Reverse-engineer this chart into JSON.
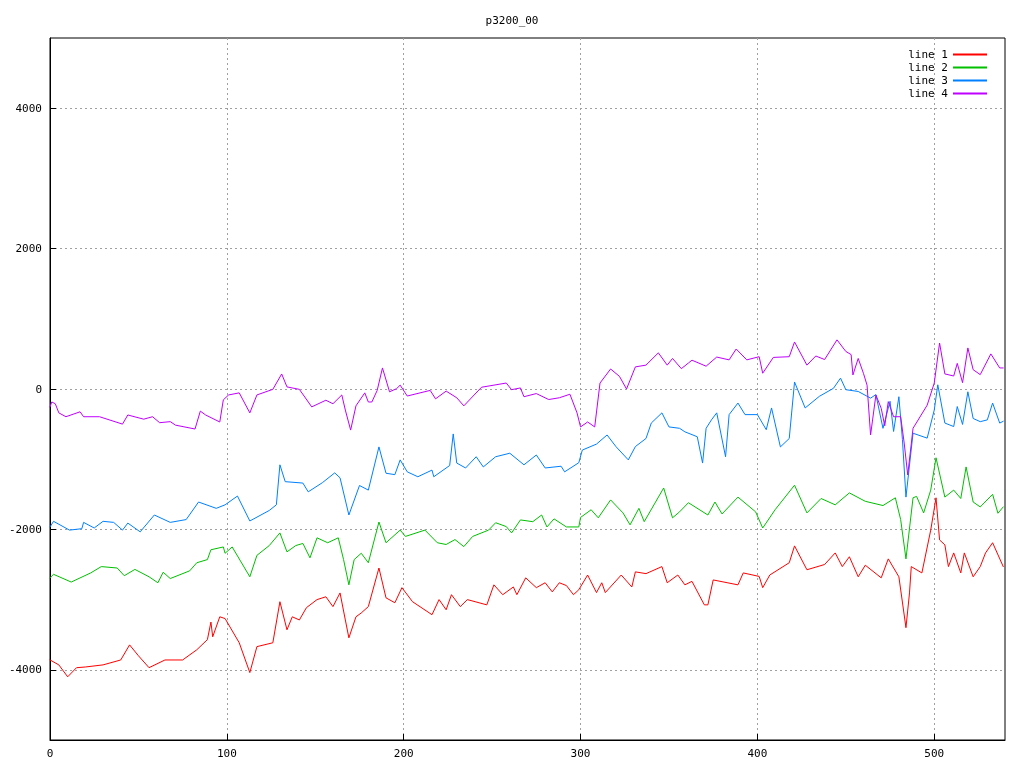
{
  "chart_data": {
    "type": "line",
    "title": "p3200_00",
    "xlim": [
      0,
      540
    ],
    "xticks": [
      0,
      100,
      200,
      300,
      400,
      500
    ],
    "ylim": [
      -5000,
      5000
    ],
    "yticks": [
      -4000,
      -2000,
      0,
      2000,
      4000
    ],
    "grid": true,
    "legend": "top right",
    "marker": "none",
    "line_style": "solid",
    "series": [
      {
        "name": "line 1",
        "color": "#ff0000",
        "x": [
          0,
          5,
          10,
          15,
          20,
          30,
          40,
          45,
          50,
          56,
          65,
          75,
          83,
          89,
          91,
          92,
          96,
          99,
          107,
          113,
          117,
          126,
          130,
          134,
          137,
          141,
          145,
          151,
          156,
          160,
          164,
          167,
          169,
          173,
          176,
          180,
          186,
          190,
          195,
          199,
          205,
          216,
          220,
          224,
          227,
          232,
          236,
          247,
          251,
          256,
          262,
          264,
          269,
          275,
          280,
          284,
          288,
          292,
          296,
          299,
          304,
          309,
          312,
          314,
          323,
          329,
          331,
          337,
          346,
          349,
          355,
          359,
          363,
          370,
          372,
          375,
          389,
          392,
          401,
          403,
          407,
          418,
          421,
          428,
          438,
          444,
          448,
          452,
          457,
          461,
          470,
          474,
          480,
          484,
          486,
          487,
          493,
          498,
          501,
          503,
          506,
          508,
          511,
          515,
          517,
          522,
          526,
          529,
          533,
          539
        ],
        "values": [
          -3860,
          -3930,
          -4100,
          -3970,
          -3960,
          -3930,
          -3860,
          -3645,
          -3800,
          -3970,
          -3860,
          -3860,
          -3715,
          -3570,
          -3320,
          -3530,
          -3245,
          -3270,
          -3615,
          -4040,
          -3670,
          -3615,
          -3030,
          -3430,
          -3245,
          -3290,
          -3115,
          -3000,
          -2960,
          -3100,
          -2905,
          -3290,
          -3545,
          -3245,
          -3190,
          -3100,
          -2550,
          -2975,
          -3045,
          -2830,
          -3030,
          -3215,
          -3000,
          -3145,
          -2930,
          -3100,
          -3000,
          -3075,
          -2790,
          -2930,
          -2820,
          -2930,
          -2690,
          -2830,
          -2760,
          -2890,
          -2760,
          -2800,
          -2930,
          -2860,
          -2650,
          -2900,
          -2760,
          -2900,
          -2650,
          -2820,
          -2605,
          -2630,
          -2530,
          -2760,
          -2650,
          -2790,
          -2740,
          -3075,
          -3075,
          -2720,
          -2790,
          -2620,
          -2670,
          -2830,
          -2650,
          -2475,
          -2235,
          -2575,
          -2500,
          -2335,
          -2530,
          -2390,
          -2675,
          -2510,
          -2690,
          -2420,
          -2675,
          -3400,
          -2905,
          -2530,
          -2620,
          -2010,
          -1550,
          -2150,
          -2220,
          -2530,
          -2335,
          -2620,
          -2335,
          -2675,
          -2530,
          -2335,
          -2190,
          -2530
        ]
      },
      {
        "name": "line 2",
        "color": "#00c000",
        "x": [
          0,
          2,
          12,
          23,
          29,
          38,
          42,
          48,
          56,
          61,
          64,
          68,
          79,
          83,
          89,
          91,
          98,
          99,
          103,
          113,
          117,
          124,
          130,
          134,
          139,
          143,
          147,
          151,
          157,
          163,
          166,
          169,
          172,
          176,
          180,
          186,
          190,
          198,
          201,
          212,
          219,
          224,
          229,
          234,
          239,
          248,
          252,
          258,
          261,
          266,
          273,
          278,
          281,
          285,
          292,
          299,
          300,
          306,
          310,
          317,
          324,
          328,
          333,
          336,
          347,
          352,
          356,
          361,
          372,
          376,
          380,
          389,
          399,
          403,
          410,
          421,
          428,
          436,
          444,
          452,
          461,
          471,
          478,
          481,
          484,
          488,
          490,
          494,
          498,
          501,
          506,
          511,
          515,
          518,
          522,
          526,
          533,
          536,
          539
        ],
        "values": [
          -2690,
          -2640,
          -2750,
          -2620,
          -2530,
          -2550,
          -2660,
          -2570,
          -2675,
          -2760,
          -2610,
          -2700,
          -2590,
          -2475,
          -2430,
          -2290,
          -2250,
          -2340,
          -2250,
          -2675,
          -2370,
          -2230,
          -2050,
          -2320,
          -2230,
          -2200,
          -2405,
          -2120,
          -2190,
          -2120,
          -2430,
          -2790,
          -2430,
          -2340,
          -2475,
          -1895,
          -2190,
          -2010,
          -2100,
          -2010,
          -2190,
          -2215,
          -2145,
          -2245,
          -2100,
          -2010,
          -1905,
          -1960,
          -2050,
          -1865,
          -1890,
          -1795,
          -1965,
          -1850,
          -1965,
          -1965,
          -1830,
          -1720,
          -1835,
          -1580,
          -1765,
          -1935,
          -1700,
          -1890,
          -1410,
          -1835,
          -1750,
          -1620,
          -1795,
          -1610,
          -1780,
          -1540,
          -1750,
          -1980,
          -1720,
          -1370,
          -1765,
          -1560,
          -1650,
          -1480,
          -1600,
          -1660,
          -1550,
          -1860,
          -2420,
          -1550,
          -1530,
          -1765,
          -1440,
          -980,
          -1540,
          -1440,
          -1560,
          -1110,
          -1610,
          -1680,
          -1500,
          -1770,
          -1680
        ]
      },
      {
        "name": "line 3",
        "color": "#0080ff",
        "x": [
          0,
          2,
          11,
          18,
          19,
          25,
          30,
          36,
          41,
          44,
          51,
          59,
          68,
          77,
          84,
          94,
          99,
          106,
          113,
          124,
          128,
          130,
          133,
          143,
          146,
          154,
          161,
          164,
          169,
          175,
          180,
          186,
          190,
          195,
          198,
          202,
          208,
          216,
          217,
          226,
          228,
          230,
          235,
          241,
          245,
          252,
          260,
          268,
          275,
          280,
          289,
          291,
          299,
          301,
          309,
          315,
          320,
          327,
          331,
          337,
          340,
          346,
          350,
          356,
          359,
          366,
          369,
          371,
          374,
          377,
          382,
          384,
          389,
          393,
          400,
          405,
          408,
          413,
          418,
          421,
          427,
          435,
          443,
          447,
          450,
          457,
          464,
          467,
          471,
          475,
          477,
          480,
          482,
          484,
          488,
          496,
          500,
          502,
          506,
          511,
          513,
          516,
          519,
          522,
          526,
          530,
          533,
          537,
          539
        ],
        "values": [
          -1965,
          -1885,
          -2010,
          -1990,
          -1900,
          -1980,
          -1885,
          -1900,
          -2010,
          -1910,
          -2035,
          -1795,
          -1900,
          -1860,
          -1610,
          -1700,
          -1650,
          -1525,
          -1880,
          -1730,
          -1650,
          -1080,
          -1320,
          -1340,
          -1465,
          -1335,
          -1195,
          -1265,
          -1795,
          -1375,
          -1440,
          -825,
          -1200,
          -1220,
          -1010,
          -1180,
          -1250,
          -1155,
          -1250,
          -1090,
          -640,
          -1055,
          -1125,
          -965,
          -1110,
          -965,
          -915,
          -1080,
          -940,
          -1125,
          -1100,
          -1180,
          -1050,
          -870,
          -785,
          -655,
          -820,
          -1010,
          -820,
          -705,
          -485,
          -340,
          -540,
          -560,
          -610,
          -680,
          -1055,
          -560,
          -440,
          -340,
          -965,
          -365,
          -200,
          -365,
          -365,
          -580,
          -270,
          -825,
          -705,
          100,
          -270,
          -105,
          10,
          155,
          -10,
          -35,
          -130,
          -80,
          -560,
          -175,
          -605,
          -110,
          -720,
          -1540,
          -630,
          -700,
          -300,
          60,
          -485,
          -535,
          -250,
          -505,
          -40,
          -420,
          -465,
          -440,
          -200,
          -485,
          -460
        ]
      },
      {
        "name": "line 4",
        "color": "#c000ff",
        "x": [
          0,
          1,
          3,
          5,
          9,
          17,
          19,
          28,
          41,
          44,
          53,
          58,
          62,
          68,
          71,
          82,
          85,
          88,
          96,
          98,
          101,
          107,
          113,
          117,
          126,
          131,
          134,
          141,
          148,
          156,
          160,
          165,
          167,
          170,
          173,
          178,
          180,
          182,
          185,
          188,
          192,
          196,
          198,
          202,
          215,
          218,
          224,
          230,
          234,
          244,
          258,
          261,
          266,
          268,
          275,
          282,
          288,
          294,
          298,
          300,
          304,
          308,
          311,
          317,
          322,
          326,
          331,
          337,
          344,
          349,
          352,
          357,
          361,
          363,
          371,
          377,
          384,
          388,
          394,
          401,
          403,
          409,
          418,
          421,
          428,
          433,
          438,
          445,
          450,
          453,
          454,
          457,
          460,
          462,
          464,
          467,
          470,
          472,
          474,
          477,
          481,
          483,
          485,
          488,
          496,
          500,
          503,
          506,
          511,
          513,
          516,
          519,
          522,
          526,
          532,
          537,
          539
        ],
        "values": [
          -255,
          -185,
          -210,
          -340,
          -395,
          -325,
          -395,
          -395,
          -500,
          -370,
          -430,
          -395,
          -480,
          -465,
          -515,
          -570,
          -315,
          -370,
          -470,
          -155,
          -85,
          -55,
          -340,
          -85,
          -5,
          214,
          30,
          -5,
          -255,
          -160,
          -210,
          -85,
          -300,
          -585,
          -240,
          -55,
          -185,
          -185,
          -20,
          300,
          -40,
          5,
          55,
          -100,
          -20,
          -140,
          -30,
          -125,
          -240,
          25,
          85,
          -10,
          15,
          -110,
          -65,
          -150,
          -125,
          -75,
          -340,
          -540,
          -470,
          -540,
          85,
          285,
          180,
          0,
          315,
          340,
          515,
          340,
          435,
          290,
          370,
          410,
          325,
          455,
          415,
          570,
          415,
          460,
          225,
          450,
          460,
          670,
          340,
          470,
          420,
          700,
          535,
          490,
          200,
          435,
          220,
          55,
          -655,
          -85,
          -275,
          -525,
          -180,
          -395,
          -395,
          -770,
          -1225,
          -560,
          -230,
          85,
          655,
          215,
          185,
          365,
          90,
          585,
          275,
          205,
          500,
          300,
          300
        ]
      }
    ]
  }
}
